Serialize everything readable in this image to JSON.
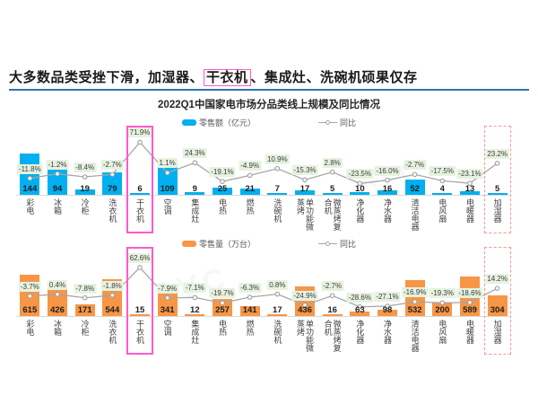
{
  "header": {
    "title_segments": [
      {
        "text": "大多数品类受挫下滑，加湿器、",
        "boxed": false
      },
      {
        "text": "干衣机",
        "boxed": true
      },
      {
        "text": "、集成灶、洗碗机硕果仅存",
        "boxed": false
      }
    ]
  },
  "chart_title": "2022Q1中国家电市场分品类线上规模及同比情况",
  "watermark_text": "AVC",
  "colors": {
    "underline_blue": "#2e74b5",
    "bar_blue": "#00b0f0",
    "bar_orange": "#f79646",
    "yoy_badge_bg": "#e6f2df",
    "trend_line": "#a6a6a6",
    "highlight_pink": "#ff5acd",
    "highlight_red_dashed": "#ff5a5a"
  },
  "chart_data": [
    {
      "type": "bar",
      "bar_legend": "零售额（亿元）",
      "line_legend": "同比",
      "bar_color": "#00b0f0",
      "categories": [
        "彩电",
        "冰箱",
        "冷柜",
        "洗衣机",
        "干衣机",
        "空调",
        "集成灶",
        "电热",
        "燃热",
        "洗碗机",
        "单功能微蒸烤",
        "微蒸烤复合机",
        "净化器",
        "净水器",
        "清洁电器",
        "电风扇",
        "电暖器",
        "加湿器"
      ],
      "values": [
        144,
        94,
        19,
        79,
        6,
        109,
        9,
        25,
        21,
        7,
        17,
        5,
        10,
        16,
        52,
        4,
        13,
        5
      ],
      "yoy_pct": [
        -11.8,
        -1.2,
        -8.4,
        -2.7,
        71.9,
        1.1,
        24.3,
        -19.1,
        -4.9,
        10.9,
        -15.3,
        2.8,
        -23.5,
        -16.0,
        -2.7,
        -17.5,
        -23.1,
        23.2
      ],
      "highlight_pink_category": "干衣机",
      "highlight_red_category": "加湿器"
    },
    {
      "type": "bar",
      "bar_legend": "零售量（万台）",
      "line_legend": "同比",
      "bar_color": "#f79646",
      "categories": [
        "彩电",
        "冰箱",
        "冷柜",
        "洗衣机",
        "干衣机",
        "空调",
        "集成灶",
        "电热",
        "燃热",
        "洗碗机",
        "单功能微蒸烤",
        "微蒸烤复合机",
        "净化器",
        "净水器",
        "清洁电器",
        "电风扇",
        "电暖器",
        "加湿器"
      ],
      "values": [
        615,
        426,
        171,
        544,
        15,
        341,
        12,
        257,
        141,
        17,
        436,
        16,
        63,
        98,
        532,
        200,
        589,
        304
      ],
      "yoy_pct": [
        -3.7,
        0.4,
        -7.8,
        -1.8,
        62.6,
        -7.9,
        -7.1,
        -19.7,
        -6.3,
        0.8,
        -24.9,
        -2.7,
        -28.6,
        -27.1,
        -16.9,
        -19.3,
        -18.6,
        14.2
      ],
      "highlight_pink_category": "干衣机",
      "highlight_red_category": "加湿器"
    }
  ]
}
